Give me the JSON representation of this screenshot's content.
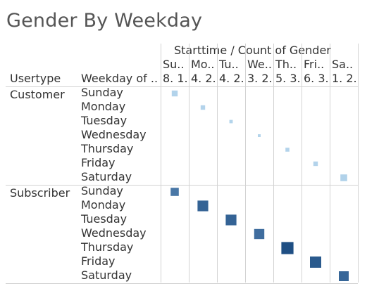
{
  "title": "Gender By Weekday",
  "header": {
    "measure_label": "Starttime  /  Count of Gender",
    "row_header_1": "Usertype",
    "row_header_2": "Weekday of ..",
    "columns": [
      {
        "name": "Su..",
        "value": "8. 1."
      },
      {
        "name": "Mo..",
        "value": "4. 2."
      },
      {
        "name": "Tu..",
        "value": "4. 2."
      },
      {
        "name": "We..",
        "value": "3. 2."
      },
      {
        "name": "Th..",
        "value": "5. 3."
      },
      {
        "name": "Fri..",
        "value": "6. 3."
      },
      {
        "name": "Sa..",
        "value": "1. 2."
      }
    ]
  },
  "colors": {
    "customer_mark": "#a7cde7",
    "subscriber_light": "#6b97c1",
    "subscriber_dark": "#1f4f84",
    "grid": "#d3d3d3",
    "text": "#333333",
    "title": "#555555"
  },
  "chart_data": {
    "type": "heatmap",
    "title": "Gender By Weekday",
    "xlabel": "Starttime / Count of Gender",
    "columns": [
      "Su..",
      "Mo..",
      "Tu..",
      "We..",
      "Th..",
      "Fri..",
      "Sa.."
    ],
    "groups": [
      {
        "usertype": "Customer",
        "rows": [
          {
            "weekday": "Sunday",
            "col": 0,
            "size": 0.42,
            "shade": 0.15
          },
          {
            "weekday": "Monday",
            "col": 1,
            "size": 0.32,
            "shade": 0.12
          },
          {
            "weekday": "Tuesday",
            "col": 2,
            "size": 0.24,
            "shade": 0.1
          },
          {
            "weekday": "Wednesday",
            "col": 3,
            "size": 0.2,
            "shade": 0.1
          },
          {
            "weekday": "Thursday",
            "col": 4,
            "size": 0.28,
            "shade": 0.12
          },
          {
            "weekday": "Friday",
            "col": 5,
            "size": 0.32,
            "shade": 0.12
          },
          {
            "weekday": "Saturday",
            "col": 6,
            "size": 0.48,
            "shade": 0.18
          }
        ]
      },
      {
        "usertype": "Subscriber",
        "rows": [
          {
            "weekday": "Sunday",
            "col": 0,
            "size": 0.58,
            "shade": 0.45
          },
          {
            "weekday": "Monday",
            "col": 1,
            "size": 0.76,
            "shade": 0.72
          },
          {
            "weekday": "Tuesday",
            "col": 2,
            "size": 0.76,
            "shade": 0.72
          },
          {
            "weekday": "Wednesday",
            "col": 3,
            "size": 0.72,
            "shade": 0.58
          },
          {
            "weekday": "Thursday",
            "col": 4,
            "size": 0.86,
            "shade": 1.0
          },
          {
            "weekday": "Friday",
            "col": 5,
            "size": 0.8,
            "shade": 0.85
          },
          {
            "weekday": "Saturday",
            "col": 6,
            "size": 0.7,
            "shade": 0.68
          }
        ]
      }
    ]
  }
}
